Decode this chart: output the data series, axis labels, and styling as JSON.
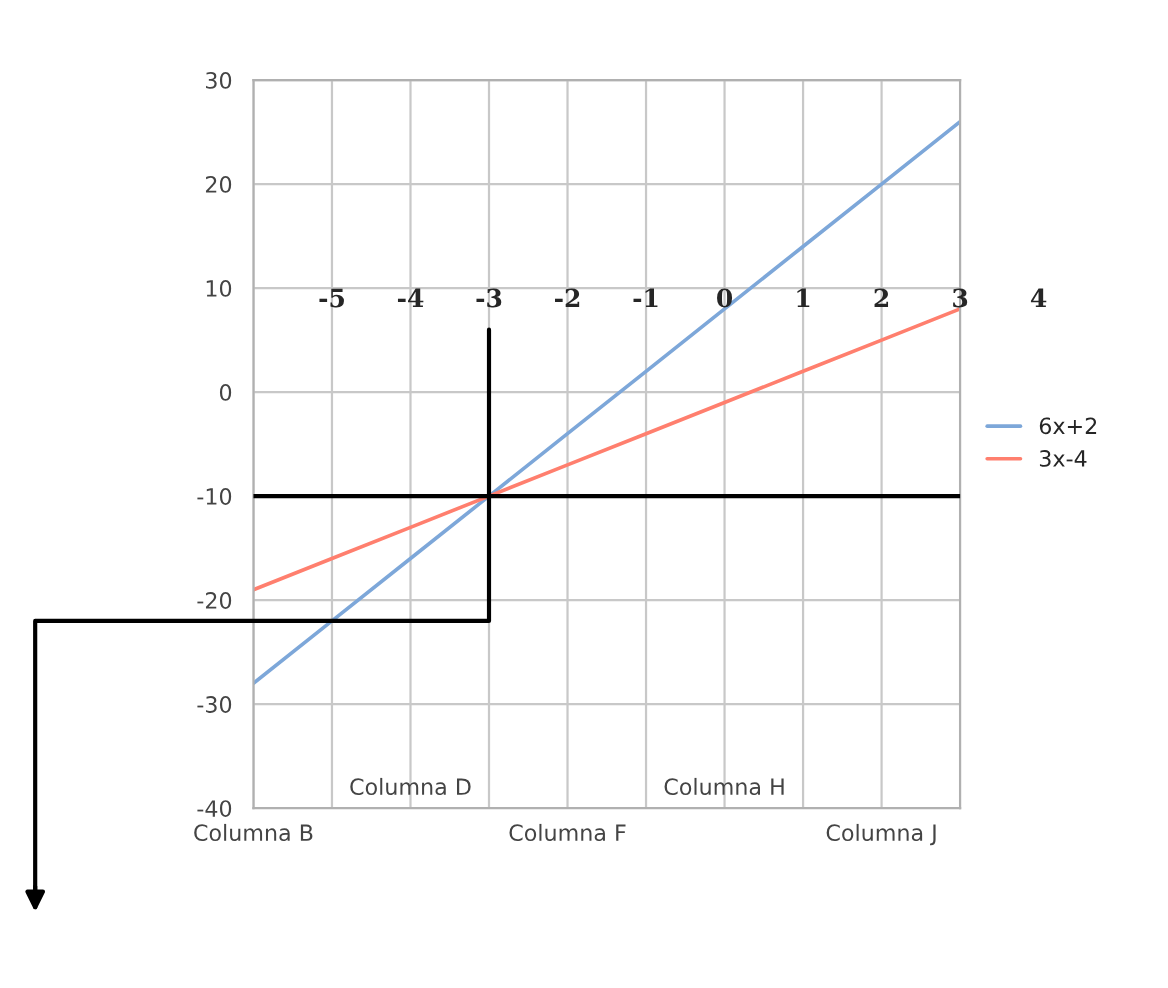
{
  "chart_data": {
    "type": "line",
    "categories": [
      "Columna B",
      null,
      "Columna D",
      null,
      "Columna F",
      null,
      "Columna H",
      null,
      "Columna J",
      null
    ],
    "series": [
      {
        "name": "6x+2",
        "color": "#7da7d9",
        "values": [
          -28,
          -22,
          -16,
          -10,
          -4,
          2,
          8,
          14,
          20,
          26
        ]
      },
      {
        "name": "3x-4",
        "color": "#ff7f6e",
        "values": [
          -19,
          -16,
          -13,
          -10,
          -7,
          -4,
          -1,
          2,
          5,
          8
        ]
      }
    ],
    "ylim": [
      -40,
      30
    ],
    "yticks": [
      -40,
      -30,
      -20,
      -10,
      0,
      10,
      20,
      30
    ],
    "grid": true,
    "legend": "right",
    "marker": "none",
    "line_style": "solid",
    "ref_lines": [
      {
        "axis": "y",
        "value": -10,
        "color": "#000000"
      }
    ],
    "annotations": [
      "-5",
      "-4",
      "-3",
      "-2",
      "-1",
      "0",
      "1",
      "2",
      "3",
      "4"
    ]
  }
}
